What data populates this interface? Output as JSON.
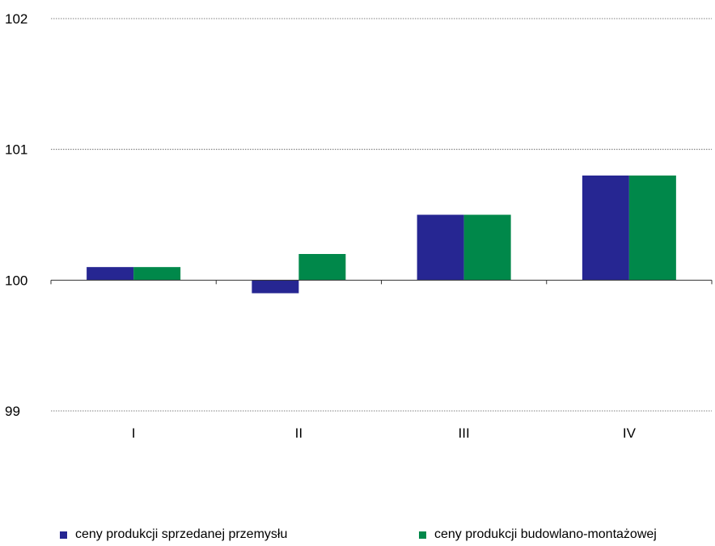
{
  "chart_data": {
    "type": "bar",
    "categories": [
      "I",
      "II",
      "III",
      "IV"
    ],
    "series": [
      {
        "name": "ceny produkcji sprzedanej przemysłu",
        "values": [
          100.1,
          99.9,
          100.5,
          100.8
        ],
        "color": "#262692"
      },
      {
        "name": "ceny produkcji budowlano-montażowej",
        "values": [
          100.1,
          100.2,
          100.5,
          100.8
        ],
        "color": "#00884a"
      }
    ],
    "baseline": 100,
    "ylim": [
      99,
      102
    ],
    "yticks": [
      "99",
      "100",
      "101",
      "102"
    ],
    "grid": true,
    "legend_position": "bottom"
  }
}
